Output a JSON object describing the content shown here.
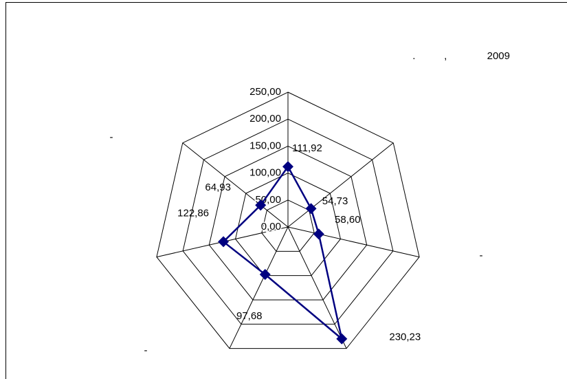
{
  "chart_data": {
    "type": "radar",
    "title": ".          ,              2009",
    "categories": [
      null,
      null,
      "-",
      null,
      "-",
      null,
      "-"
    ],
    "series": [
      {
        "name": null,
        "color": "#000080",
        "values": [
          111.92,
          54.73,
          58.6,
          230.23,
          97.68,
          122.86,
          64.93
        ],
        "value_labels": [
          "111,92",
          "54,73",
          "58,60",
          "230,23",
          "97,68",
          "122,86",
          "64,93"
        ]
      }
    ],
    "ylim": [
      0,
      250
    ],
    "yticks": [
      {
        "value": 0,
        "label": "0,00"
      },
      {
        "value": 50,
        "label": "50,00"
      },
      {
        "value": 100,
        "label": "100,00"
      },
      {
        "value": 150,
        "label": "150,00"
      },
      {
        "value": 200,
        "label": "200,00"
      },
      {
        "value": 250,
        "label": "250,00"
      }
    ],
    "grid": true
  }
}
